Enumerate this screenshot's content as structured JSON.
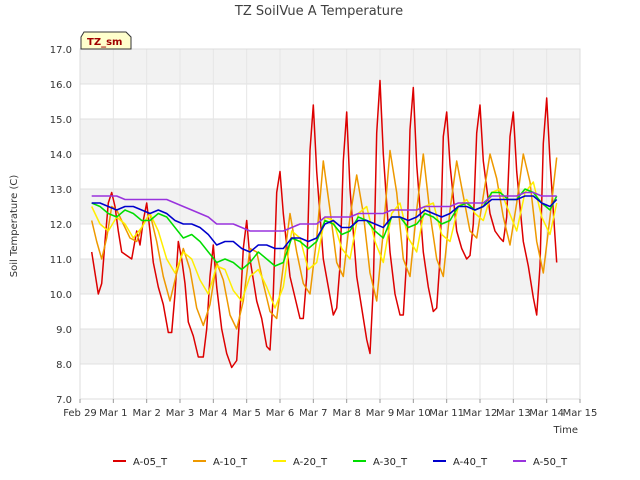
{
  "chart_data": {
    "type": "line",
    "title": "TZ SoilVue A Temperature",
    "xlabel": "Time",
    "ylabel": "Soil Temperature (C)",
    "badge": "TZ_sm",
    "ylim": [
      7.0,
      17.0
    ],
    "xlim": [
      0,
      15
    ],
    "yticks": [
      7.0,
      8.0,
      9.0,
      10.0,
      11.0,
      12.0,
      13.0,
      14.0,
      15.0,
      16.0,
      17.0
    ],
    "ytick_labels": [
      "7.0",
      "8.0",
      "9.0",
      "10.0",
      "11.0",
      "12.0",
      "13.0",
      "14.0",
      "15.0",
      "16.0",
      "17.0"
    ],
    "xticks": [
      0,
      1,
      2,
      3,
      4,
      5,
      6,
      7,
      8,
      9,
      10,
      11,
      12,
      13,
      14,
      15
    ],
    "xtick_labels": [
      "Feb 29",
      "Mar 1",
      "Mar 2",
      "Mar 3",
      "Mar 4",
      "Mar 5",
      "Mar 6",
      "Mar 7",
      "Mar 8",
      "Mar 9",
      "Mar 10",
      "Mar 11",
      "Mar 12",
      "Mar 13",
      "Mar 14",
      "Mar 15"
    ],
    "legend_position": "bottom",
    "series": [
      {
        "name": "A-05_T",
        "color": "#dd0000",
        "x": [
          0.35,
          0.45,
          0.55,
          0.65,
          0.75,
          0.85,
          0.95,
          1.05,
          1.15,
          1.25,
          1.4,
          1.55,
          1.7,
          1.8,
          1.9,
          2.0,
          2.1,
          2.2,
          2.35,
          2.5,
          2.65,
          2.75,
          2.85,
          2.95,
          3.05,
          3.15,
          3.25,
          3.4,
          3.55,
          3.7,
          3.8,
          3.9,
          4.0,
          4.1,
          4.25,
          4.4,
          4.55,
          4.7,
          4.8,
          4.9,
          5.0,
          5.1,
          5.3,
          5.45,
          5.6,
          5.7,
          5.8,
          5.9,
          6.0,
          6.1,
          6.3,
          6.45,
          6.6,
          6.7,
          6.8,
          6.9,
          7.0,
          7.1,
          7.3,
          7.45,
          7.6,
          7.7,
          7.8,
          7.9,
          8.0,
          8.1,
          8.3,
          8.45,
          8.6,
          8.7,
          8.8,
          8.9,
          9.0,
          9.1,
          9.3,
          9.45,
          9.6,
          9.7,
          9.8,
          9.9,
          10.0,
          10.1,
          10.3,
          10.45,
          10.6,
          10.7,
          10.8,
          10.9,
          11.0,
          11.1,
          11.3,
          11.45,
          11.6,
          11.7,
          11.8,
          11.9,
          12.0,
          12.1,
          12.3,
          12.45,
          12.6,
          12.7,
          12.8,
          12.9,
          13.0,
          13.1,
          13.3,
          13.45,
          13.6,
          13.7,
          13.8,
          13.9,
          14.0,
          14.1,
          14.3
        ],
        "y": [
          11.2,
          10.6,
          10.0,
          10.3,
          11.5,
          12.6,
          12.9,
          12.5,
          11.8,
          11.2,
          11.1,
          11.0,
          11.8,
          11.4,
          12.1,
          12.6,
          11.8,
          10.9,
          10.2,
          9.7,
          8.9,
          8.9,
          10.0,
          11.5,
          11.0,
          10.3,
          9.2,
          8.8,
          8.2,
          8.2,
          9.0,
          10.5,
          11.4,
          10.2,
          9.0,
          8.3,
          7.9,
          8.1,
          9.5,
          11.3,
          12.1,
          11.0,
          9.8,
          9.3,
          8.5,
          8.4,
          10.0,
          12.9,
          13.5,
          12.3,
          10.5,
          9.9,
          9.3,
          9.3,
          10.5,
          14.1,
          15.4,
          13.5,
          11.0,
          10.2,
          9.4,
          9.6,
          10.8,
          13.8,
          15.2,
          13.0,
          10.5,
          9.6,
          8.7,
          8.3,
          10.2,
          14.6,
          16.1,
          14.0,
          11.2,
          10.0,
          9.4,
          9.4,
          11.0,
          14.7,
          15.9,
          13.7,
          11.2,
          10.2,
          9.5,
          9.6,
          11.0,
          14.5,
          15.2,
          13.7,
          11.8,
          11.3,
          11.0,
          11.1,
          12.0,
          14.6,
          15.4,
          13.8,
          12.3,
          11.8,
          11.6,
          11.5,
          12.2,
          14.5,
          15.2,
          13.5,
          11.5,
          10.8,
          9.9,
          9.4,
          10.8,
          14.3,
          15.6,
          13.8,
          10.9
        ]
      },
      {
        "name": "A-10_T",
        "color": "#ee9900",
        "x": [
          0.35,
          0.5,
          0.65,
          0.8,
          0.95,
          1.1,
          1.3,
          1.5,
          1.7,
          1.9,
          2.1,
          2.3,
          2.5,
          2.7,
          2.9,
          3.1,
          3.3,
          3.5,
          3.7,
          3.9,
          4.1,
          4.3,
          4.5,
          4.7,
          4.9,
          5.1,
          5.3,
          5.5,
          5.7,
          5.9,
          6.1,
          6.3,
          6.5,
          6.7,
          6.9,
          7.1,
          7.3,
          7.5,
          7.7,
          7.9,
          8.1,
          8.3,
          8.5,
          8.7,
          8.9,
          9.1,
          9.3,
          9.5,
          9.7,
          9.9,
          10.1,
          10.3,
          10.5,
          10.7,
          10.9,
          11.1,
          11.3,
          11.5,
          11.7,
          11.9,
          12.1,
          12.3,
          12.5,
          12.7,
          12.9,
          13.1,
          13.3,
          13.5,
          13.7,
          13.9,
          14.1,
          14.3
        ],
        "y": [
          12.1,
          11.5,
          11.0,
          11.6,
          12.5,
          12.4,
          12.0,
          11.6,
          11.5,
          12.0,
          12.3,
          11.5,
          10.5,
          9.8,
          10.6,
          11.3,
          10.7,
          9.6,
          9.1,
          9.7,
          10.9,
          10.4,
          9.4,
          9.0,
          9.8,
          11.3,
          11.2,
          10.3,
          9.5,
          9.3,
          10.8,
          12.3,
          11.2,
          10.3,
          10.0,
          11.6,
          13.8,
          12.4,
          10.9,
          10.5,
          12.2,
          13.4,
          12.3,
          10.6,
          9.8,
          11.8,
          14.1,
          12.9,
          11.0,
          10.5,
          12.4,
          14.0,
          12.3,
          11.0,
          10.5,
          12.4,
          13.8,
          12.8,
          11.8,
          11.6,
          12.8,
          14.0,
          13.3,
          12.2,
          11.4,
          12.6,
          14.0,
          13.2,
          11.5,
          10.6,
          12.2,
          13.9
        ]
      },
      {
        "name": "A-20_T",
        "color": "#ffee00",
        "x": [
          0.35,
          0.6,
          0.85,
          1.1,
          1.35,
          1.6,
          1.85,
          2.1,
          2.35,
          2.6,
          2.85,
          3.1,
          3.35,
          3.6,
          3.85,
          4.1,
          4.35,
          4.6,
          4.85,
          5.1,
          5.35,
          5.6,
          5.85,
          6.1,
          6.35,
          6.6,
          6.85,
          7.1,
          7.35,
          7.6,
          7.85,
          8.1,
          8.35,
          8.6,
          8.85,
          9.1,
          9.35,
          9.6,
          9.85,
          10.1,
          10.35,
          10.6,
          10.85,
          11.1,
          11.35,
          11.6,
          11.85,
          12.1,
          12.35,
          12.6,
          12.85,
          13.1,
          13.35,
          13.6,
          13.85,
          14.1,
          14.3
        ],
        "y": [
          12.5,
          12.0,
          11.8,
          12.2,
          12.0,
          11.6,
          11.9,
          12.3,
          11.8,
          11.0,
          10.6,
          11.2,
          11.0,
          10.4,
          10.0,
          10.8,
          10.7,
          10.1,
          9.8,
          10.5,
          10.7,
          10.2,
          9.6,
          10.2,
          11.8,
          11.6,
          10.7,
          10.9,
          12.2,
          12.1,
          11.3,
          11.0,
          12.3,
          12.5,
          11.5,
          10.9,
          12.3,
          12.6,
          11.6,
          11.2,
          12.5,
          12.6,
          11.7,
          11.5,
          12.5,
          12.7,
          12.3,
          12.1,
          12.9,
          13.0,
          12.4,
          11.8,
          12.9,
          13.2,
          12.2,
          11.7,
          12.6
        ]
      },
      {
        "name": "A-30_T",
        "color": "#00dd00",
        "x": [
          0.35,
          0.6,
          0.85,
          1.1,
          1.35,
          1.6,
          1.85,
          2.1,
          2.35,
          2.6,
          2.85,
          3.1,
          3.35,
          3.6,
          3.85,
          4.1,
          4.35,
          4.6,
          4.85,
          5.1,
          5.35,
          5.6,
          5.85,
          6.1,
          6.35,
          6.6,
          6.85,
          7.1,
          7.35,
          7.6,
          7.85,
          8.1,
          8.35,
          8.6,
          8.85,
          9.1,
          9.35,
          9.6,
          9.85,
          10.1,
          10.35,
          10.6,
          10.85,
          11.1,
          11.35,
          11.6,
          11.85,
          12.1,
          12.35,
          12.6,
          12.85,
          13.1,
          13.35,
          13.6,
          13.85,
          14.1,
          14.3
        ],
        "y": [
          12.6,
          12.5,
          12.3,
          12.2,
          12.4,
          12.3,
          12.1,
          12.1,
          12.3,
          12.2,
          11.9,
          11.6,
          11.7,
          11.5,
          11.2,
          10.9,
          11.0,
          10.9,
          10.7,
          10.9,
          11.2,
          11.0,
          10.8,
          10.9,
          11.6,
          11.5,
          11.3,
          11.5,
          12.1,
          12.0,
          11.7,
          11.8,
          12.2,
          12.1,
          11.8,
          11.6,
          12.2,
          12.2,
          11.9,
          12.0,
          12.3,
          12.2,
          12.0,
          12.1,
          12.5,
          12.6,
          12.4,
          12.5,
          12.9,
          12.9,
          12.7,
          12.7,
          13.0,
          12.9,
          12.6,
          12.4,
          12.8
        ]
      },
      {
        "name": "A-40_T",
        "color": "#0000cc",
        "x": [
          0.35,
          0.6,
          0.85,
          1.1,
          1.35,
          1.6,
          1.85,
          2.1,
          2.35,
          2.6,
          2.85,
          3.1,
          3.35,
          3.6,
          3.85,
          4.1,
          4.35,
          4.6,
          4.85,
          5.1,
          5.35,
          5.6,
          5.85,
          6.1,
          6.35,
          6.6,
          6.85,
          7.1,
          7.35,
          7.6,
          7.85,
          8.1,
          8.35,
          8.6,
          8.85,
          9.1,
          9.35,
          9.6,
          9.85,
          10.1,
          10.35,
          10.6,
          10.85,
          11.1,
          11.35,
          11.6,
          11.85,
          12.1,
          12.35,
          12.6,
          12.85,
          13.1,
          13.35,
          13.6,
          13.85,
          14.1,
          14.3
        ],
        "y": [
          12.6,
          12.6,
          12.5,
          12.4,
          12.5,
          12.5,
          12.4,
          12.3,
          12.4,
          12.3,
          12.1,
          12.0,
          12.0,
          11.9,
          11.7,
          11.4,
          11.5,
          11.5,
          11.3,
          11.2,
          11.4,
          11.4,
          11.3,
          11.3,
          11.6,
          11.6,
          11.5,
          11.6,
          12.0,
          12.1,
          11.9,
          11.9,
          12.1,
          12.1,
          12.0,
          11.9,
          12.2,
          12.2,
          12.1,
          12.2,
          12.4,
          12.3,
          12.2,
          12.3,
          12.5,
          12.5,
          12.4,
          12.5,
          12.7,
          12.7,
          12.7,
          12.7,
          12.8,
          12.8,
          12.6,
          12.5,
          12.7
        ]
      },
      {
        "name": "A-50_T",
        "color": "#9933dd",
        "x": [
          0.35,
          0.6,
          0.85,
          1.1,
          1.35,
          1.6,
          1.85,
          2.1,
          2.35,
          2.6,
          2.85,
          3.1,
          3.35,
          3.6,
          3.85,
          4.1,
          4.35,
          4.6,
          4.85,
          5.1,
          5.35,
          5.6,
          5.85,
          6.1,
          6.35,
          6.6,
          6.85,
          7.1,
          7.35,
          7.6,
          7.85,
          8.1,
          8.35,
          8.6,
          8.85,
          9.1,
          9.35,
          9.6,
          9.85,
          10.1,
          10.35,
          10.6,
          10.85,
          11.1,
          11.35,
          11.6,
          11.85,
          12.1,
          12.35,
          12.6,
          12.85,
          13.1,
          13.35,
          13.6,
          13.85,
          14.1,
          14.3
        ],
        "y": [
          12.8,
          12.8,
          12.8,
          12.8,
          12.7,
          12.7,
          12.7,
          12.7,
          12.7,
          12.7,
          12.6,
          12.5,
          12.4,
          12.3,
          12.2,
          12.0,
          12.0,
          12.0,
          11.9,
          11.8,
          11.8,
          11.8,
          11.8,
          11.8,
          11.9,
          12.0,
          12.0,
          12.0,
          12.2,
          12.2,
          12.2,
          12.2,
          12.3,
          12.3,
          12.3,
          12.3,
          12.4,
          12.4,
          12.4,
          12.4,
          12.5,
          12.5,
          12.5,
          12.5,
          12.6,
          12.6,
          12.6,
          12.6,
          12.8,
          12.8,
          12.8,
          12.8,
          12.9,
          12.9,
          12.8,
          12.8,
          12.8
        ]
      }
    ]
  }
}
